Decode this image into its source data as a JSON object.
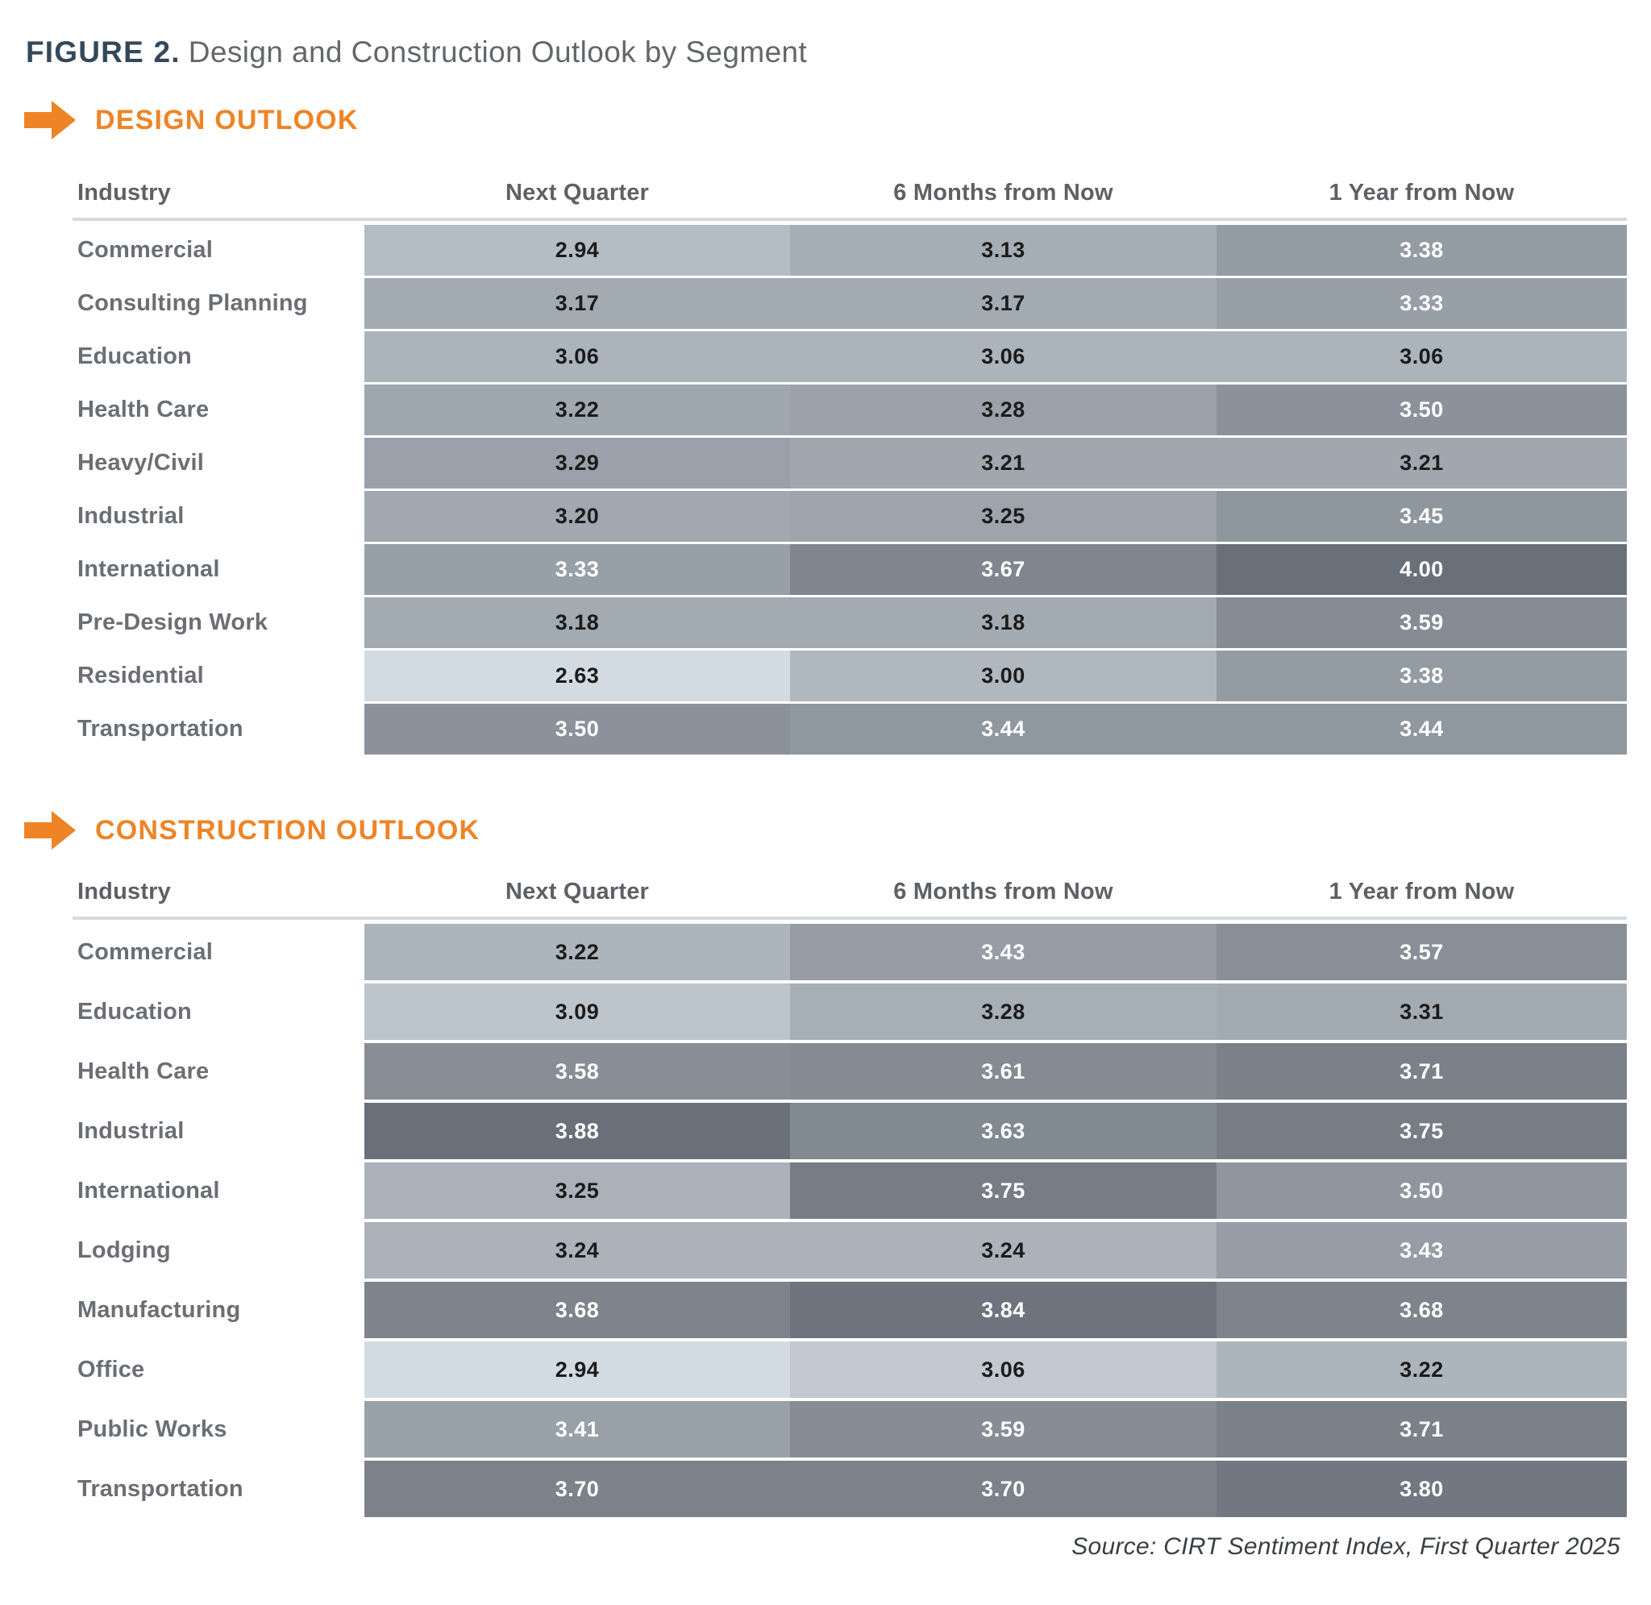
{
  "figure": {
    "label": "FIGURE 2.",
    "title": "Design and Construction Outlook by Segment"
  },
  "columns": [
    "Industry",
    "Next Quarter",
    "6 Months from Now",
    "1 Year from Now"
  ],
  "chart_data": [
    {
      "type": "heatmap",
      "heading": "DESIGN OUTLOOK",
      "columns": [
        "Next Quarter",
        "6 Months from Now",
        "1 Year from Now"
      ],
      "rows": [
        {
          "industry": "Commercial",
          "values": [
            "2.94",
            "3.13",
            "3.38"
          ]
        },
        {
          "industry": "Consulting Planning",
          "values": [
            "3.17",
            "3.17",
            "3.33"
          ]
        },
        {
          "industry": "Education",
          "values": [
            "3.06",
            "3.06",
            "3.06"
          ]
        },
        {
          "industry": "Health Care",
          "values": [
            "3.22",
            "3.28",
            "3.50"
          ]
        },
        {
          "industry": "Heavy/Civil",
          "values": [
            "3.29",
            "3.21",
            "3.21"
          ]
        },
        {
          "industry": "Industrial",
          "values": [
            "3.20",
            "3.25",
            "3.45"
          ]
        },
        {
          "industry": "International",
          "values": [
            "3.33",
            "3.67",
            "4.00"
          ]
        },
        {
          "industry": "Pre-Design Work",
          "values": [
            "3.18",
            "3.18",
            "3.59"
          ]
        },
        {
          "industry": "Residential",
          "values": [
            "2.63",
            "3.00",
            "3.38"
          ]
        },
        {
          "industry": "Transportation",
          "values": [
            "3.50",
            "3.44",
            "3.44"
          ]
        }
      ]
    },
    {
      "type": "heatmap",
      "heading": "CONSTRUCTION OUTLOOK",
      "columns": [
        "Next Quarter",
        "6 Months from Now",
        "1 Year from Now"
      ],
      "rows": [
        {
          "industry": "Commercial",
          "values": [
            "3.22",
            "3.43",
            "3.57"
          ]
        },
        {
          "industry": "Education",
          "values": [
            "3.09",
            "3.28",
            "3.31"
          ]
        },
        {
          "industry": "Health Care",
          "values": [
            "3.58",
            "3.61",
            "3.71"
          ]
        },
        {
          "industry": "Industrial",
          "values": [
            "3.88",
            "3.63",
            "3.75"
          ]
        },
        {
          "industry": "International",
          "values": [
            "3.25",
            "3.75",
            "3.50"
          ]
        },
        {
          "industry": "Lodging",
          "values": [
            "3.24",
            "3.24",
            "3.43"
          ]
        },
        {
          "industry": "Manufacturing",
          "values": [
            "3.68",
            "3.84",
            "3.68"
          ]
        },
        {
          "industry": "Office",
          "values": [
            "2.94",
            "3.06",
            "3.22"
          ]
        },
        {
          "industry": "Public Works",
          "values": [
            "3.41",
            "3.59",
            "3.71"
          ]
        },
        {
          "industry": "Transportation",
          "values": [
            "3.70",
            "3.70",
            "3.80"
          ]
        }
      ]
    }
  ],
  "source": "Source: CIRT Sentiment Index, First Quarter 2025",
  "heatmap": {
    "light_color": "#d3dbe2",
    "dark_color": "#697079",
    "gamma": 0.85,
    "white_text_threshold": 0.55,
    "white_text_color": "#ffffff",
    "dark_text_color": "#1b1b1b"
  },
  "colors": {
    "accent_orange": "#ee8426",
    "figure_label": "#33495a",
    "title_gray": "#64676a",
    "header_text": "#5d6165",
    "row_label_text": "#6b6f74",
    "header_rule": "#d7dadd",
    "source_text": "#3a3e42"
  }
}
